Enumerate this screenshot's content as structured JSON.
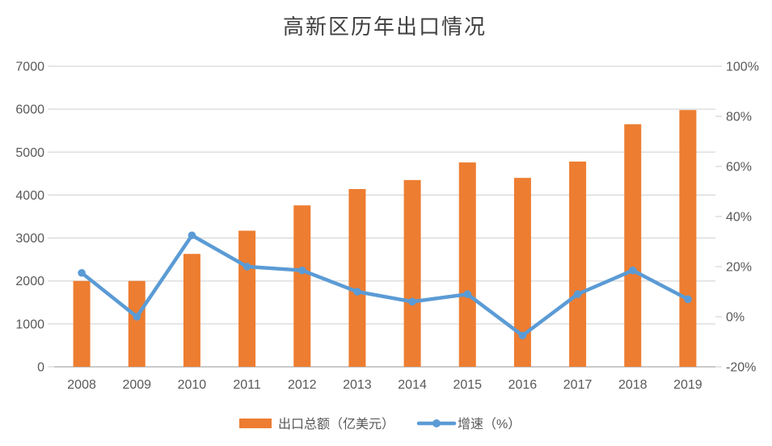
{
  "title": "高新区历年出口情况",
  "legend": {
    "bar_label": "出口总额（亿美元）",
    "line_label": "增速（%）"
  },
  "colors": {
    "bar": "#ED7D31",
    "line": "#5B9BD5",
    "grid": "#D9D9D9",
    "axis_line": "#C9C9C9",
    "tick_text": "#595959",
    "title_text": "#404040",
    "background": "#FFFFFF"
  },
  "chart_data": {
    "type": "bar",
    "subtype": "combo-bar-line-dual-axis",
    "title": "高新区历年出口情况",
    "categories": [
      "2008",
      "2009",
      "2010",
      "2011",
      "2012",
      "2013",
      "2014",
      "2015",
      "2016",
      "2017",
      "2018",
      "2019"
    ],
    "series": [
      {
        "name": "出口总额（亿美元）",
        "type": "bar",
        "axis": "left",
        "values": [
          2000,
          2000,
          2630,
          3170,
          3760,
          4140,
          4350,
          4760,
          4400,
          4780,
          5650,
          5980
        ]
      },
      {
        "name": "增速（%）",
        "type": "line",
        "axis": "right",
        "values": [
          17.5,
          0,
          32.5,
          20,
          18.5,
          10,
          6,
          9,
          -7.5,
          9,
          18.5,
          7
        ]
      }
    ],
    "left_axis": {
      "min": 0,
      "max": 7000,
      "step": 1000,
      "ticks": [
        "0",
        "1000",
        "2000",
        "3000",
        "4000",
        "5000",
        "6000",
        "7000"
      ]
    },
    "right_axis": {
      "min": -20,
      "max": 100,
      "step": 20,
      "ticks": [
        "-20%",
        "0%",
        "20%",
        "40%",
        "60%",
        "80%",
        "100%"
      ]
    },
    "grid": "horizontal",
    "legend_position": "bottom",
    "xlabel": "",
    "ylabel_left": "出口总额（亿美元）",
    "ylabel_right": "增速（%）"
  }
}
